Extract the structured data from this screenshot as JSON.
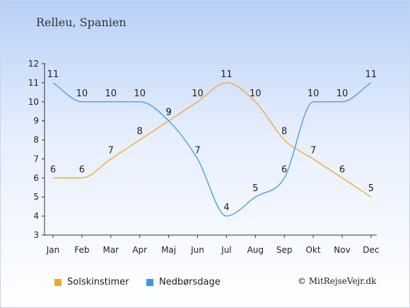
{
  "chart_data": {
    "type": "line",
    "title": "Relleu, Spanien",
    "categories": [
      "Jan",
      "Feb",
      "Mar",
      "Apr",
      "Maj",
      "Jun",
      "Jul",
      "Aug",
      "Sep",
      "Okt",
      "Nov",
      "Dec"
    ],
    "series": [
      {
        "name": "Solskinstimer",
        "color": "#f5a623",
        "values": [
          6,
          6,
          7,
          8,
          9,
          10,
          11,
          10,
          8,
          7,
          6,
          5
        ]
      },
      {
        "name": "Nedbørsdage",
        "color": "#3b9ae1",
        "values": [
          11,
          10,
          10,
          10,
          9,
          7,
          4,
          5,
          6,
          10,
          10,
          11
        ]
      }
    ],
    "ylim": [
      3,
      12
    ],
    "yticks": [
      3,
      4,
      5,
      6,
      7,
      8,
      9,
      10,
      11,
      12
    ],
    "grid": false,
    "legend": "bottom"
  },
  "copyright": "© MitRejseVejr.dk"
}
